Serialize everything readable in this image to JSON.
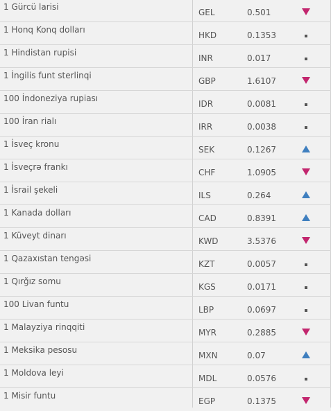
{
  "currency_rates": {
    "colors": {
      "down": "#c2266e",
      "up": "#3f7fbf",
      "flat": "#555555"
    },
    "rows": [
      {
        "name": "1 Gürcü larisi",
        "code": "GEL",
        "rate": "0.501",
        "trend": "down"
      },
      {
        "name": "1 Honq Konq dolları",
        "code": "HKD",
        "rate": "0.1353",
        "trend": "flat"
      },
      {
        "name": "1 Hindistan rupisi",
        "code": "INR",
        "rate": "0.017",
        "trend": "flat"
      },
      {
        "name": "1 İngilis funt sterlinqi",
        "code": "GBP",
        "rate": "1.6107",
        "trend": "down"
      },
      {
        "name": "100 İndoneziya rupiası",
        "code": "IDR",
        "rate": "0.0081",
        "trend": "flat"
      },
      {
        "name": "100 İran rialı",
        "code": "IRR",
        "rate": "0.0038",
        "trend": "flat"
      },
      {
        "name": "1 İsveç kronu",
        "code": "SEK",
        "rate": "0.1267",
        "trend": "up"
      },
      {
        "name": "1 İsveçrə frankı",
        "code": "CHF",
        "rate": "1.0905",
        "trend": "down"
      },
      {
        "name": "1 İsrail şekeli",
        "code": "ILS",
        "rate": "0.264",
        "trend": "up"
      },
      {
        "name": "1 Kanada dolları",
        "code": "CAD",
        "rate": "0.8391",
        "trend": "up"
      },
      {
        "name": "1 Küveyt dinarı",
        "code": "KWD",
        "rate": "3.5376",
        "trend": "down"
      },
      {
        "name": "1 Qazaxıstan tengəsi",
        "code": "KZT",
        "rate": "0.0057",
        "trend": "flat"
      },
      {
        "name": "1 Qırğız somu",
        "code": "KGS",
        "rate": "0.0171",
        "trend": "flat"
      },
      {
        "name": "100 Livan funtu",
        "code": "LBP",
        "rate": "0.0697",
        "trend": "flat"
      },
      {
        "name": "1 Malayziya rinqqiti",
        "code": "MYR",
        "rate": "0.2885",
        "trend": "down"
      },
      {
        "name": "1 Meksika pesosu",
        "code": "MXN",
        "rate": "0.07",
        "trend": "up"
      },
      {
        "name": "1 Moldova leyi",
        "code": "MDL",
        "rate": "0.0576",
        "trend": "flat"
      },
      {
        "name": "1 Misir funtu",
        "code": "EGP",
        "rate": "0.1375",
        "trend": "down"
      }
    ]
  }
}
